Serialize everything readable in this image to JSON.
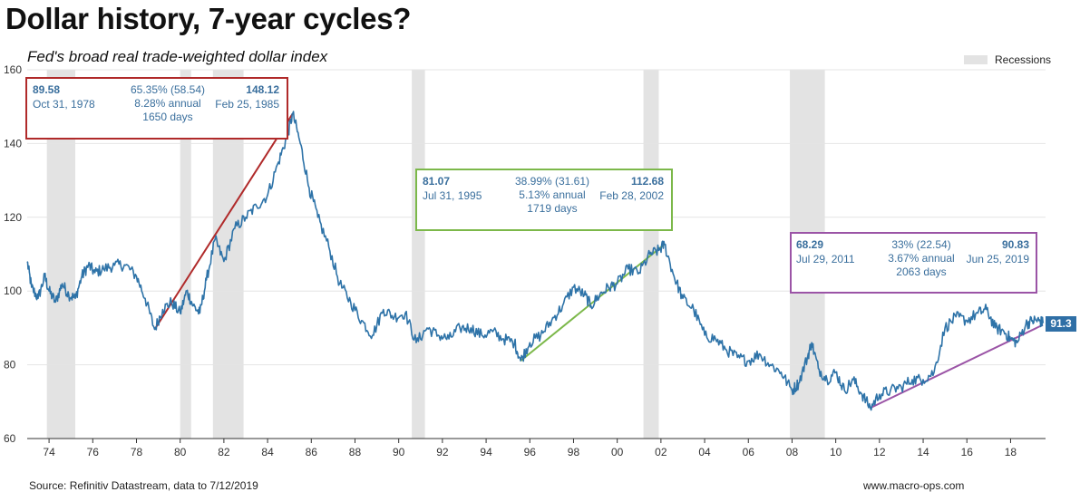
{
  "title": "Dollar history, 7-year cycles?",
  "subtitle": "Fed's broad real trade-weighted dollar index",
  "legend": {
    "recessions_label": "Recessions"
  },
  "source": "Source: Refinitiv Datastream, data to 7/12/2019",
  "credit": "www.macro-ops.com",
  "end_label": "91.3",
  "colors": {
    "line": "#2e73a8",
    "red": "#b02a2a",
    "green": "#7cb84a",
    "purple": "#9b54a6",
    "recession": "#e3e3e3",
    "grid": "#e4e4e4",
    "label_text": "#3a6f9d"
  },
  "annotations": [
    {
      "id": "cycle-1",
      "start_value": "89.58",
      "start_date": "Oct 31, 1978",
      "change": "65.35% (58.54)",
      "annual": "8.28% annual",
      "days": "1650 days",
      "end_value": "148.12",
      "end_date": "Feb 25, 1985"
    },
    {
      "id": "cycle-2",
      "start_value": "81.07",
      "start_date": "Jul 31, 1995",
      "change": "38.99% (31.61)",
      "annual": "5.13% annual",
      "days": "1719 days",
      "end_value": "112.68",
      "end_date": "Feb 28, 2002"
    },
    {
      "id": "cycle-3",
      "start_value": "68.29",
      "start_date": "Jul 29, 2011",
      "change": "33% (22.54)",
      "annual": "3.67% annual",
      "days": "2063 days",
      "end_value": "90.83",
      "end_date": "Jun 25, 2019"
    }
  ],
  "chart_data": {
    "type": "line",
    "title": "Dollar history, 7-year cycles?",
    "subtitle": "Fed's broad real trade-weighted dollar index",
    "xlabel": "",
    "ylabel": "",
    "xlim": [
      1973.0,
      2019.6
    ],
    "ylim": [
      60,
      160
    ],
    "y_ticks": [
      60,
      80,
      100,
      120,
      140,
      160
    ],
    "x_ticks": [
      {
        "year": 1974,
        "label": "74"
      },
      {
        "year": 1976,
        "label": "76"
      },
      {
        "year": 1978,
        "label": "78"
      },
      {
        "year": 1980,
        "label": "80"
      },
      {
        "year": 1982,
        "label": "82"
      },
      {
        "year": 1984,
        "label": "84"
      },
      {
        "year": 1986,
        "label": "86"
      },
      {
        "year": 1988,
        "label": "88"
      },
      {
        "year": 1990,
        "label": "90"
      },
      {
        "year": 1992,
        "label": "92"
      },
      {
        "year": 1994,
        "label": "94"
      },
      {
        "year": 1996,
        "label": "96"
      },
      {
        "year": 1998,
        "label": "98"
      },
      {
        "year": 2000,
        "label": "00"
      },
      {
        "year": 2002,
        "label": "02"
      },
      {
        "year": 2004,
        "label": "04"
      },
      {
        "year": 2006,
        "label": "06"
      },
      {
        "year": 2008,
        "label": "08"
      },
      {
        "year": 2010,
        "label": "10"
      },
      {
        "year": 2012,
        "label": "12"
      },
      {
        "year": 2014,
        "label": "14"
      },
      {
        "year": 2016,
        "label": "16"
      },
      {
        "year": 2018,
        "label": "18"
      }
    ],
    "grid": true,
    "recessions": [
      [
        1973.9,
        1975.2
      ],
      [
        1980.0,
        1980.5
      ],
      [
        1981.5,
        1982.9
      ],
      [
        1990.6,
        1991.2
      ],
      [
        2001.2,
        2001.9
      ],
      [
        2007.9,
        2009.5
      ]
    ],
    "series": [
      {
        "name": "Fed's broad real trade-weighted dollar index",
        "x": [
          1973.0,
          1973.2,
          1973.5,
          1973.8,
          1974.0,
          1974.3,
          1974.6,
          1974.9,
          1975.2,
          1975.5,
          1975.8,
          1976.1,
          1976.5,
          1977.0,
          1977.5,
          1978.0,
          1978.4,
          1978.83,
          1979.2,
          1979.6,
          1980.0,
          1980.3,
          1980.6,
          1980.9,
          1981.2,
          1981.6,
          1982.0,
          1982.5,
          1983.0,
          1983.5,
          1984.0,
          1984.5,
          1984.9,
          1985.15,
          1985.5,
          1985.9,
          1986.3,
          1986.8,
          1987.3,
          1987.8,
          1988.3,
          1988.8,
          1989.3,
          1989.8,
          1990.3,
          1990.8,
          1991.3,
          1991.8,
          1992.3,
          1992.8,
          1993.3,
          1993.8,
          1994.3,
          1994.8,
          1995.3,
          1995.58,
          1996.0,
          1996.5,
          1997.0,
          1997.5,
          1998.0,
          1998.5,
          1998.8,
          1999.2,
          1999.6,
          2000.0,
          2000.5,
          2001.0,
          2001.5,
          2001.9,
          2002.16,
          2002.6,
          2003.0,
          2003.5,
          2004.0,
          2004.5,
          2005.0,
          2005.5,
          2006.0,
          2006.5,
          2007.0,
          2007.5,
          2008.0,
          2008.3,
          2008.7,
          2008.9,
          2009.2,
          2009.6,
          2010.0,
          2010.4,
          2010.8,
          2011.2,
          2011.58,
          2012.0,
          2012.5,
          2013.0,
          2013.5,
          2014.0,
          2014.5,
          2015.0,
          2015.5,
          2016.0,
          2016.5,
          2016.9,
          2017.3,
          2017.7,
          2018.0,
          2018.3,
          2018.7,
          2019.0,
          2019.3,
          2019.5
        ],
        "values": [
          108,
          101,
          98,
          104,
          100,
          97,
          102,
          99,
          98,
          104,
          107,
          105,
          106,
          107,
          107,
          104,
          98,
          89.6,
          95,
          97,
          94,
          100,
          96,
          94,
          103,
          114,
          108,
          117,
          120,
          123,
          126,
          135,
          142,
          148.1,
          140,
          128,
          120,
          112,
          102,
          97,
          92,
          88,
          95,
          93,
          94,
          86,
          90,
          88,
          87,
          90,
          90,
          88,
          89,
          87,
          86,
          81.1,
          86,
          88,
          92,
          96,
          101,
          99,
          96,
          99,
          101,
          102,
          106,
          105,
          110,
          111,
          112.7,
          104,
          98,
          95,
          88,
          87,
          84,
          82,
          81,
          83,
          80,
          78,
          73,
          75,
          82,
          86,
          79,
          76,
          78,
          73,
          76,
          72,
          68.3,
          72,
          73,
          74,
          76,
          76,
          78,
          90,
          93,
          92,
          94,
          95,
          90,
          89,
          87,
          86,
          91,
          92,
          92,
          91.3
        ]
      }
    ],
    "trend_lines": [
      {
        "name": "cycle-1",
        "x": [
          1978.83,
          1985.15
        ],
        "values": [
          89.58,
          148.12
        ],
        "color": "#b02a2a"
      },
      {
        "name": "cycle-2",
        "x": [
          1995.58,
          2002.16
        ],
        "values": [
          81.07,
          112.68
        ],
        "color": "#7cb84a"
      },
      {
        "name": "cycle-3",
        "x": [
          2011.58,
          2019.48
        ],
        "values": [
          68.29,
          90.83
        ],
        "color": "#9b54a6"
      }
    ],
    "end_value_label": "91.3"
  }
}
